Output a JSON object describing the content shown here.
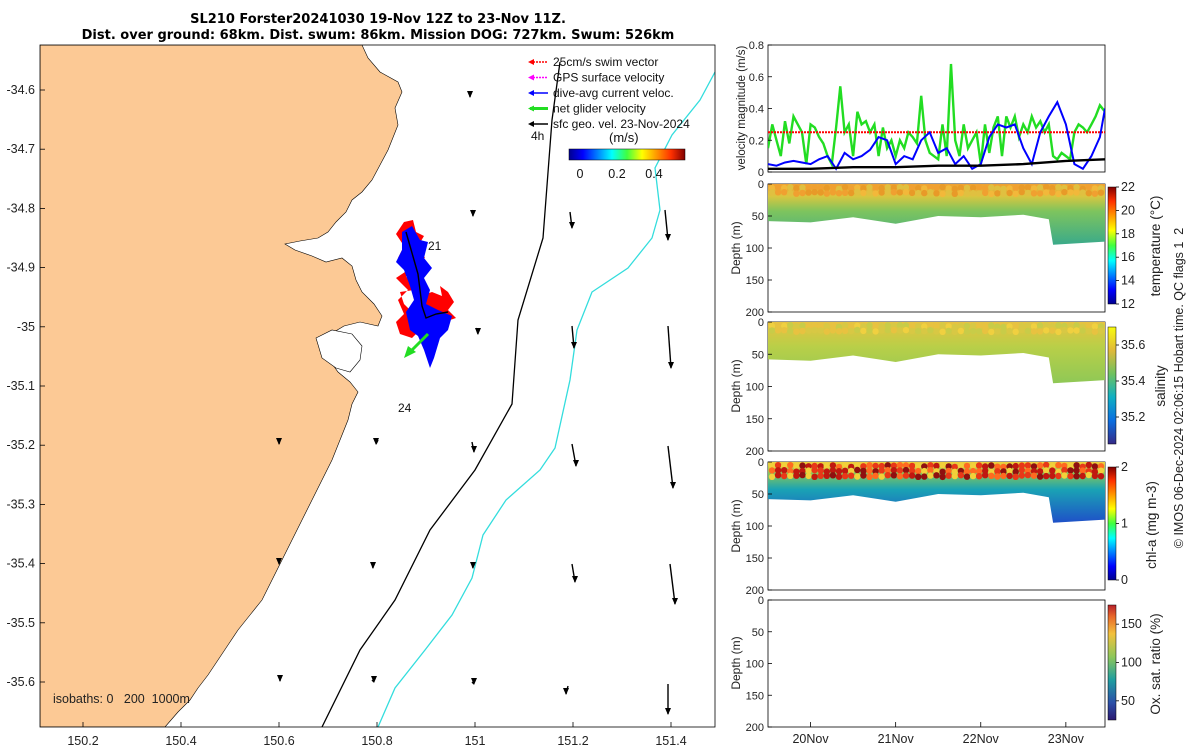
{
  "title": {
    "line1": "SL210 Forster20241030 19-Nov 12Z to 23-Nov 11Z.",
    "line2": "Dist. over ground: 68km. Dist. swum: 86km. Mission DOG: 727km. Swum: 526km"
  },
  "colors": {
    "land": "#fcc995",
    "swim": "#ff0000",
    "gps": "#ff00ff",
    "current": "#0000ff",
    "net": "#22dd22",
    "geo": "#000000",
    "isobath200": "#000000",
    "isobath1000": "#33dddd"
  },
  "map": {
    "lon_ticks": [
      "150.2",
      "150.4",
      "150.6",
      "150.8",
      "151",
      "151.2",
      "151.4"
    ],
    "lat_ticks": [
      "-34.6",
      "-34.7",
      "-34.8",
      "-34.9",
      "-35",
      "-35.1",
      "-35.2",
      "-35.3",
      "-35.4",
      "-35.5",
      "-35.6"
    ],
    "legend": [
      {
        "label": "25cm/s swim vector",
        "color_key": "swim"
      },
      {
        "label": "GPS surface velocity",
        "color_key": "gps"
      },
      {
        "label": "dive-avg current veloc.",
        "color_key": "current"
      },
      {
        "label": "net glider velocity",
        "color_key": "net"
      },
      {
        "label": "sfc geo. vel. 23-Nov-2024",
        "color_key": "geo"
      }
    ],
    "interval_label": "4h",
    "colorbar_label": "(m/s)",
    "colorbar_ticks": [
      "0",
      "0.2",
      "0.4"
    ],
    "day_labels": [
      "21",
      "24"
    ],
    "isobaths_label": "isobaths: 0   200  1000m"
  },
  "chart_data": [
    {
      "type": "line",
      "ylabel": "velocity magnitude (m/s)",
      "ylim": [
        0,
        0.8
      ],
      "yticks": [
        "0",
        "0.2",
        "0.4",
        "0.6",
        "0.8"
      ],
      "x_days": [
        19.5,
        23.46
      ],
      "series": [
        {
          "name": "net glider velocity",
          "color_key": "net",
          "x": [
            19.5,
            19.55,
            19.6,
            19.65,
            19.7,
            19.75,
            19.8,
            19.85,
            19.9,
            19.95,
            20.0,
            20.05,
            20.1,
            20.15,
            20.2,
            20.25,
            20.3,
            20.35,
            20.4,
            20.45,
            20.5,
            20.55,
            20.6,
            20.65,
            20.7,
            20.75,
            20.8,
            20.85,
            20.9,
            20.95,
            21.0,
            21.05,
            21.1,
            21.15,
            21.2,
            21.25,
            21.3,
            21.35,
            21.4,
            21.45,
            21.5,
            21.55,
            21.6,
            21.65,
            21.7,
            21.75,
            21.8,
            21.85,
            21.9,
            21.95,
            22.0,
            22.05,
            22.1,
            22.15,
            22.2,
            22.25,
            22.3,
            22.35,
            22.4,
            22.45,
            22.5,
            22.55,
            22.6,
            22.65,
            22.7,
            22.75,
            22.8,
            22.85,
            22.9,
            22.95,
            23.0,
            23.05,
            23.1,
            23.15,
            23.2,
            23.25,
            23.3,
            23.35,
            23.4,
            23.46
          ],
          "y": [
            0.15,
            0.3,
            0.2,
            0.1,
            0.32,
            0.18,
            0.35,
            0.3,
            0.25,
            0.05,
            0.3,
            0.28,
            0.22,
            0.18,
            0.1,
            0.05,
            0.28,
            0.54,
            0.25,
            0.3,
            0.1,
            0.38,
            0.3,
            0.32,
            0.25,
            0.3,
            0.1,
            0.28,
            0.15,
            0.2,
            0.1,
            0.2,
            0.15,
            0.25,
            0.22,
            0.18,
            0.48,
            0.2,
            0.12,
            0.1,
            0.08,
            0.3,
            0.1,
            0.68,
            0.2,
            0.1,
            0.3,
            0.15,
            0.2,
            0.25,
            0.05,
            0.3,
            0.12,
            0.28,
            0.35,
            0.1,
            0.35,
            0.28,
            0.35,
            0.22,
            0.3,
            0.25,
            0.35,
            0.28,
            0.32,
            0.25,
            0.3,
            0.1,
            0.08,
            0.12,
            0.1,
            0.08,
            0.25,
            0.3,
            0.28,
            0.25,
            0.3,
            0.35,
            0.42,
            0.38
          ]
        },
        {
          "name": "25cm/s swim vector",
          "color_key": "swim",
          "x": [
            19.5,
            23.46
          ],
          "y": [
            0.25,
            0.25
          ]
        },
        {
          "name": "dive-avg current veloc.",
          "color_key": "current",
          "x": [
            19.5,
            19.6,
            19.7,
            19.8,
            19.9,
            20.0,
            20.1,
            20.2,
            20.3,
            20.4,
            20.5,
            20.6,
            20.7,
            20.8,
            20.9,
            21.0,
            21.1,
            21.2,
            21.3,
            21.4,
            21.5,
            21.6,
            21.7,
            21.8,
            21.9,
            22.0,
            22.1,
            22.2,
            22.3,
            22.4,
            22.5,
            22.6,
            22.7,
            22.8,
            22.9,
            23.0,
            23.1,
            23.2,
            23.3,
            23.4,
            23.46
          ],
          "y": [
            0.05,
            0.04,
            0.06,
            0.07,
            0.06,
            0.05,
            0.08,
            0.1,
            0.02,
            0.12,
            0.08,
            0.1,
            0.14,
            0.22,
            0.2,
            0.05,
            0.1,
            0.08,
            0.2,
            0.25,
            0.12,
            0.15,
            0.05,
            0.1,
            0.02,
            0.05,
            0.22,
            0.3,
            0.28,
            0.3,
            0.15,
            0.05,
            0.25,
            0.35,
            0.44,
            0.3,
            0.05,
            0.02,
            0.1,
            0.22,
            0.4
          ]
        },
        {
          "name": "sfc geo. vel.",
          "color_key": "geo",
          "x": [
            19.5,
            20.0,
            20.5,
            21.0,
            21.5,
            22.0,
            22.5,
            23.0,
            23.46
          ],
          "y": [
            0.02,
            0.02,
            0.03,
            0.03,
            0.04,
            0.04,
            0.05,
            0.07,
            0.08
          ]
        }
      ]
    },
    {
      "type": "heatmap",
      "ylabel": "Depth (m)",
      "colorbar_label": "temperature (°C)",
      "clim": [
        12,
        22
      ],
      "colorbar_ticks": [
        "12",
        "14",
        "16",
        "18",
        "20",
        "22"
      ],
      "yticks": [
        "0",
        "50",
        "100",
        "150",
        "200"
      ],
      "layers": [
        {
          "name": "surface",
          "value": 21
        },
        {
          "name": "mixed",
          "value": 19
        },
        {
          "name": "lower",
          "value": 18
        }
      ],
      "max_depth_profile": [
        [
          19.5,
          58
        ],
        [
          20.0,
          60
        ],
        [
          20.5,
          52
        ],
        [
          21.0,
          62
        ],
        [
          21.5,
          50
        ],
        [
          22.0,
          52
        ],
        [
          22.5,
          48
        ],
        [
          22.8,
          55
        ],
        [
          22.85,
          95
        ],
        [
          23.46,
          90
        ]
      ]
    },
    {
      "type": "heatmap",
      "ylabel": "Depth (m)",
      "colorbar_label": "salinity",
      "clim": [
        35.05,
        35.7
      ],
      "colorbar_ticks": [
        "35.2",
        "35.4",
        "35.6"
      ],
      "yticks": [
        "0",
        "50",
        "100",
        "150",
        "200"
      ],
      "layers": [
        {
          "name": "surface",
          "value": 35.5
        },
        {
          "name": "body",
          "value": 35.47
        }
      ],
      "max_depth_profile": [
        [
          19.5,
          58
        ],
        [
          20.0,
          60
        ],
        [
          20.5,
          52
        ],
        [
          21.0,
          62
        ],
        [
          21.5,
          50
        ],
        [
          22.0,
          52
        ],
        [
          22.5,
          48
        ],
        [
          22.8,
          55
        ],
        [
          22.85,
          95
        ],
        [
          23.46,
          90
        ]
      ]
    },
    {
      "type": "heatmap",
      "ylabel": "Depth (m)",
      "colorbar_label": "chl-a (mg m-3)",
      "clim": [
        0,
        2
      ],
      "colorbar_ticks": [
        "0",
        "1",
        "2"
      ],
      "yticks": [
        "0",
        "50",
        "100",
        "150",
        "200"
      ],
      "layers": [
        {
          "name": "surface",
          "value": 1.4
        },
        {
          "name": "deep",
          "value": 0.3
        }
      ],
      "max_depth_profile": [
        [
          19.5,
          58
        ],
        [
          20.0,
          60
        ],
        [
          20.5,
          52
        ],
        [
          21.0,
          62
        ],
        [
          21.5,
          50
        ],
        [
          22.0,
          52
        ],
        [
          22.5,
          48
        ],
        [
          22.8,
          55
        ],
        [
          22.85,
          95
        ],
        [
          23.46,
          90
        ]
      ]
    },
    {
      "type": "heatmap",
      "ylabel": "Depth (m)",
      "colorbar_label": "Ox. sat. ratio (%)",
      "clim": [
        25,
        175
      ],
      "colorbar_ticks": [
        "50",
        "100",
        "150"
      ],
      "yticks": [
        "0",
        "50",
        "100",
        "150",
        "200"
      ],
      "layers": []
    }
  ],
  "time_axis": {
    "labels": [
      "20Nov",
      "21Nov",
      "22Nov",
      "23Nov"
    ],
    "days": [
      20,
      21,
      22,
      23
    ]
  },
  "footer_text": "© IMOS 06-Dec-2024 02:06:15 Hobart time. QC flags 1  2"
}
